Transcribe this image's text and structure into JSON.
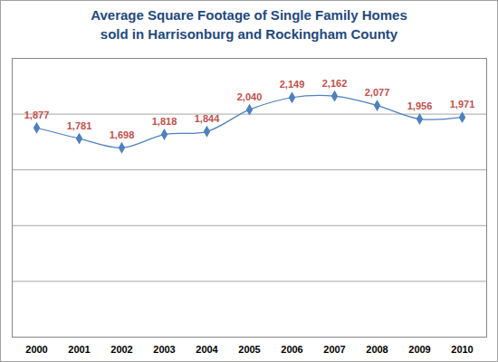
{
  "chart_data": {
    "type": "line",
    "title": "Average Square Footage of Single Family Homes\nsold in Harrisonburg and Rockingham County",
    "categories": [
      "2000",
      "2001",
      "2002",
      "2003",
      "2004",
      "2005",
      "2006",
      "2007",
      "2008",
      "2009",
      "2010"
    ],
    "values": [
      1877,
      1781,
      1698,
      1818,
      1844,
      2040,
      2149,
      2162,
      2077,
      1956,
      1971
    ],
    "value_labels": [
      "1,877",
      "1,781",
      "1,698",
      "1,818",
      "1,844",
      "2,040",
      "2,149",
      "2,162",
      "2,077",
      "1,956",
      "1,971"
    ],
    "color": "#4f81bd",
    "marker": "diamond",
    "ylim": [
      0,
      2500
    ],
    "yticks": [
      0,
      500,
      1000,
      1500,
      2000,
      2500
    ],
    "grid": true,
    "data_labels": true,
    "tick_labels": "x"
  }
}
